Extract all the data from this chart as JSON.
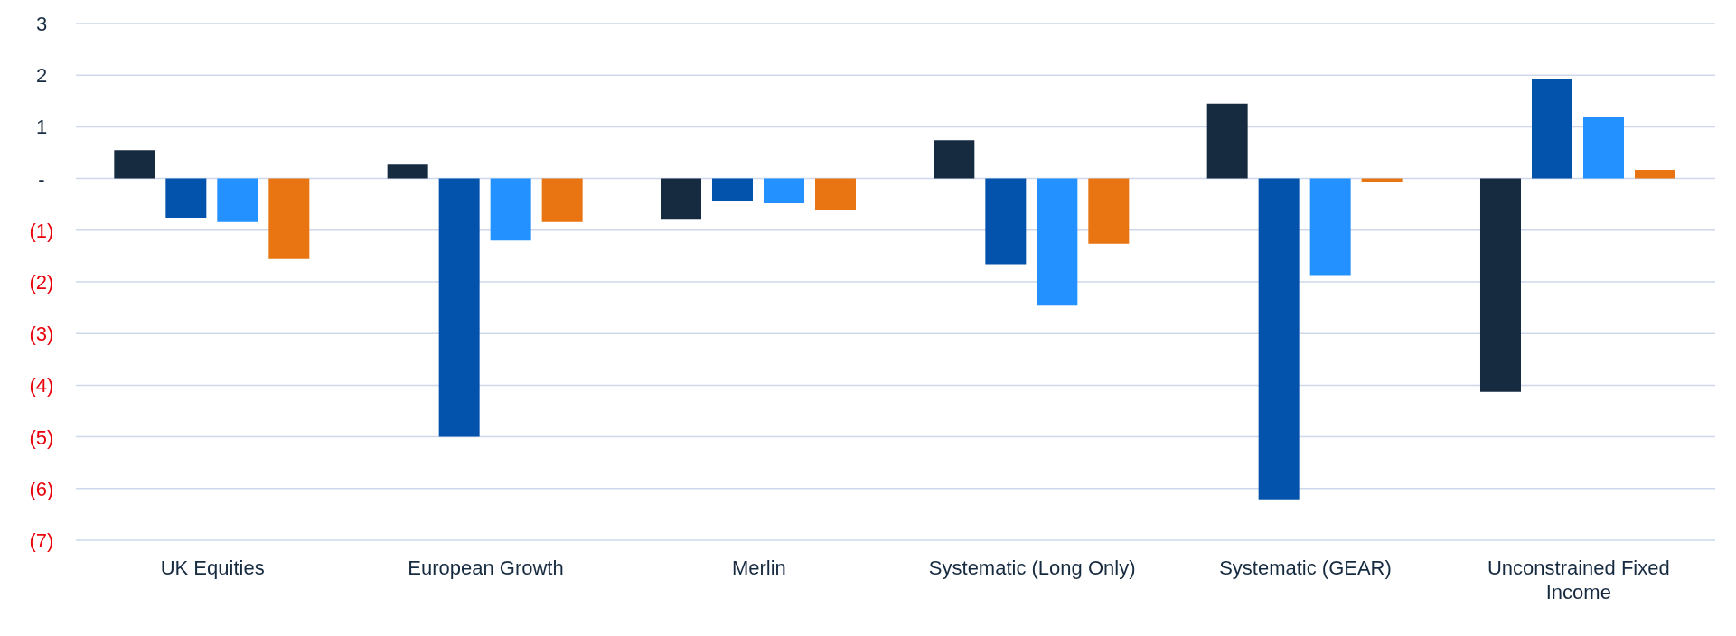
{
  "chart_data": {
    "type": "bar",
    "categories": [
      "UK Equities",
      "European Growth",
      "Merlin",
      "Systematic (Long Only)",
      "Systematic (GEAR)",
      "Unconstrained Fixed Income"
    ],
    "series": [
      {
        "color": "#172b40",
        "values": [
          0.55,
          0.27,
          -0.78,
          0.74,
          1.45,
          -4.13
        ]
      },
      {
        "color": "#0353ac",
        "values": [
          -0.76,
          -5.0,
          -0.44,
          -1.66,
          -6.21,
          1.92
        ]
      },
      {
        "color": "#2391ff",
        "values": [
          -0.84,
          -1.2,
          -0.48,
          -2.46,
          -1.87,
          1.2
        ]
      },
      {
        "color": "#e87511",
        "values": [
          -1.56,
          -0.84,
          -0.61,
          -1.26,
          -0.06,
          0.17
        ]
      }
    ],
    "ylim": [
      -7,
      3
    ],
    "yticks": [
      {
        "value": -7,
        "label": "(7)"
      },
      {
        "value": -6,
        "label": "(6)"
      },
      {
        "value": -5,
        "label": "(5)"
      },
      {
        "value": -4,
        "label": "(4)"
      },
      {
        "value": -3,
        "label": "(3)"
      },
      {
        "value": -2,
        "label": "(2)"
      },
      {
        "value": -1,
        "label": "(1)"
      },
      {
        "value": 0,
        "label": "-"
      },
      1,
      2,
      3
    ],
    "grid": "y",
    "legend": false
  }
}
